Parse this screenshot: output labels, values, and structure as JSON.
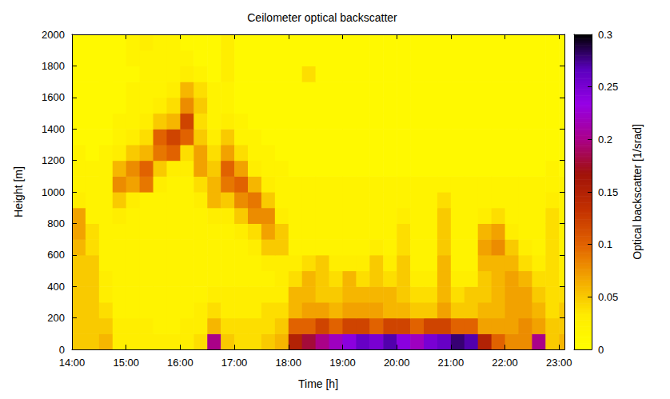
{
  "chart_data": {
    "type": "heatmap",
    "title": "Ceilometer optical backscatter",
    "x_label": "Time [h]",
    "y_label": "Height [m]",
    "xlim": [
      14,
      23.1
    ],
    "xticks": [
      {
        "value": 14,
        "label": "14:00"
      },
      {
        "value": 15,
        "label": "15:00"
      },
      {
        "value": 16,
        "label": "16:00"
      },
      {
        "value": 17,
        "label": "17:00"
      },
      {
        "value": 18,
        "label": "18:00"
      },
      {
        "value": 19,
        "label": "19:00"
      },
      {
        "value": 20,
        "label": "20:00"
      },
      {
        "value": 21,
        "label": "21:00"
      },
      {
        "value": 22,
        "label": "22:00"
      },
      {
        "value": 23,
        "label": "23:00"
      }
    ],
    "ylim": [
      0,
      2000
    ],
    "yticks": [
      0,
      200,
      400,
      600,
      800,
      1000,
      1200,
      1400,
      1600,
      1800,
      2000
    ],
    "grid": false,
    "x_bins": [
      14,
      14.25,
      14.5,
      14.75,
      15,
      15.25,
      15.5,
      15.75,
      16,
      16.25,
      16.5,
      16.75,
      17,
      17.25,
      17.5,
      17.75,
      18,
      18.25,
      18.5,
      18.75,
      19,
      19.25,
      19.5,
      19.75,
      20,
      20.25,
      20.5,
      20.75,
      21,
      21.25,
      21.5,
      21.75,
      22,
      22.25,
      22.5,
      22.75,
      23,
      23.1
    ],
    "y_bins": [
      0,
      100,
      200,
      300,
      400,
      500,
      600,
      700,
      800,
      900,
      1000,
      1100,
      1200,
      1300,
      1400,
      1500,
      1600,
      1700,
      1800,
      1900,
      2000
    ],
    "cells": [
      [
        0.05,
        0.05,
        0.06,
        0.03,
        0.03,
        0.03,
        0.03,
        0.03,
        0.03,
        0.04,
        0.2,
        0.05,
        0.04,
        0.04,
        0.05,
        0.06,
        0.15,
        0.18,
        0.2,
        0.22,
        0.24,
        0.26,
        0.25,
        0.27,
        0.24,
        0.22,
        0.25,
        0.26,
        0.28,
        0.27,
        0.15,
        0.1,
        0.08,
        0.08,
        0.2,
        0.05,
        0.06
      ],
      [
        0.05,
        0.05,
        0.05,
        0.03,
        0.03,
        0.03,
        0.02,
        0.02,
        0.03,
        0.03,
        0.06,
        0.04,
        0.04,
        0.04,
        0.04,
        0.05,
        0.1,
        0.1,
        0.12,
        0.1,
        0.12,
        0.12,
        0.1,
        0.12,
        0.12,
        0.1,
        0.12,
        0.12,
        0.1,
        0.1,
        0.07,
        0.07,
        0.07,
        0.08,
        0.07,
        0.05,
        0.05
      ],
      [
        0.05,
        0.05,
        0.04,
        0.02,
        0.02,
        0.02,
        0.02,
        0.02,
        0.02,
        0.03,
        0.04,
        0.03,
        0.03,
        0.03,
        0.04,
        0.04,
        0.06,
        0.07,
        0.07,
        0.06,
        0.07,
        0.07,
        0.07,
        0.06,
        0.06,
        0.05,
        0.05,
        0.07,
        0.05,
        0.05,
        0.06,
        0.06,
        0.07,
        0.07,
        0.06,
        0.04,
        0.05
      ],
      [
        0.05,
        0.05,
        0.03,
        0.02,
        0.02,
        0.02,
        0.02,
        0.02,
        0.02,
        0.02,
        0.03,
        0.03,
        0.03,
        0.03,
        0.03,
        0.03,
        0.06,
        0.06,
        0.05,
        0.05,
        0.06,
        0.06,
        0.06,
        0.06,
        0.05,
        0.04,
        0.04,
        0.06,
        0.04,
        0.05,
        0.05,
        0.06,
        0.07,
        0.07,
        0.05,
        0.04,
        0.04
      ],
      [
        0.05,
        0.05,
        0.03,
        0.02,
        0.02,
        0.02,
        0.02,
        0.02,
        0.02,
        0.02,
        0.02,
        0.02,
        0.02,
        0.02,
        0.02,
        0.03,
        0.04,
        0.06,
        0.05,
        0.04,
        0.06,
        0.04,
        0.05,
        0.04,
        0.05,
        0.03,
        0.03,
        0.06,
        0.03,
        0.03,
        0.05,
        0.06,
        0.07,
        0.06,
        0.04,
        0.04,
        0.03
      ],
      [
        0.05,
        0.05,
        0.02,
        0.02,
        0.02,
        0.02,
        0.02,
        0.02,
        0.02,
        0.02,
        0.02,
        0.02,
        0.02,
        0.02,
        0.03,
        0.03,
        0.03,
        0.04,
        0.05,
        0.03,
        0.03,
        0.03,
        0.05,
        0.03,
        0.05,
        0.02,
        0.02,
        0.06,
        0.02,
        0.02,
        0.06,
        0.06,
        0.06,
        0.04,
        0.03,
        0.04,
        0.03
      ],
      [
        0.06,
        0.04,
        0.02,
        0.02,
        0.02,
        0.02,
        0.02,
        0.02,
        0.02,
        0.02,
        0.02,
        0.02,
        0.02,
        0.03,
        0.05,
        0.05,
        0.02,
        0.02,
        0.02,
        0.02,
        0.02,
        0.02,
        0.03,
        0.02,
        0.04,
        0.02,
        0.02,
        0.05,
        0.02,
        0.02,
        0.07,
        0.08,
        0.05,
        0.03,
        0.02,
        0.04,
        0.02
      ],
      [
        0.07,
        0.04,
        0.02,
        0.02,
        0.02,
        0.02,
        0.02,
        0.02,
        0.02,
        0.02,
        0.02,
        0.02,
        0.03,
        0.04,
        0.07,
        0.05,
        0.02,
        0.02,
        0.02,
        0.02,
        0.02,
        0.02,
        0.02,
        0.02,
        0.04,
        0.02,
        0.02,
        0.05,
        0.02,
        0.02,
        0.06,
        0.07,
        0.03,
        0.02,
        0.02,
        0.04,
        0.02
      ],
      [
        0.07,
        0.02,
        0.02,
        0.03,
        0.02,
        0.02,
        0.02,
        0.02,
        0.02,
        0.02,
        0.03,
        0.03,
        0.05,
        0.08,
        0.08,
        0.03,
        0.02,
        0.02,
        0.02,
        0.02,
        0.02,
        0.02,
        0.02,
        0.02,
        0.03,
        0.02,
        0.02,
        0.05,
        0.02,
        0.02,
        0.03,
        0.04,
        0.02,
        0.02,
        0.02,
        0.04,
        0.02
      ],
      [
        0.03,
        0.02,
        0.02,
        0.05,
        0.03,
        0.02,
        0.02,
        0.02,
        0.02,
        0.03,
        0.06,
        0.05,
        0.08,
        0.09,
        0.05,
        0.02,
        0.02,
        0.02,
        0.02,
        0.02,
        0.02,
        0.02,
        0.02,
        0.02,
        0.02,
        0.02,
        0.02,
        0.04,
        0.02,
        0.02,
        0.02,
        0.02,
        0.02,
        0.02,
        0.02,
        0.03,
        0.02
      ],
      [
        0.02,
        0.02,
        0.02,
        0.08,
        0.07,
        0.09,
        0.03,
        0.02,
        0.02,
        0.04,
        0.06,
        0.09,
        0.1,
        0.06,
        0.03,
        0.02,
        0.02,
        0.02,
        0.02,
        0.02,
        0.02,
        0.02,
        0.02,
        0.02,
        0.02,
        0.02,
        0.02,
        0.02,
        0.02,
        0.02,
        0.02,
        0.02,
        0.02,
        0.02,
        0.02,
        0.02,
        0.02
      ],
      [
        0.02,
        0.02,
        0.02,
        0.06,
        0.08,
        0.1,
        0.05,
        0.03,
        0.03,
        0.07,
        0.05,
        0.1,
        0.07,
        0.03,
        0.02,
        0.02,
        0.01,
        0.01,
        0.01,
        0.01,
        0.01,
        0.01,
        0.01,
        0.01,
        0.01,
        0.01,
        0.01,
        0.01,
        0.01,
        0.01,
        0.01,
        0.01,
        0.01,
        0.01,
        0.01,
        0.02,
        0.01
      ],
      [
        0.02,
        0.01,
        0.02,
        0.03,
        0.05,
        0.06,
        0.09,
        0.1,
        0.04,
        0.07,
        0.04,
        0.07,
        0.04,
        0.02,
        0.02,
        0.01,
        0.01,
        0.01,
        0.01,
        0.01,
        0.01,
        0.01,
        0.01,
        0.01,
        0.01,
        0.01,
        0.01,
        0.01,
        0.01,
        0.01,
        0.01,
        0.01,
        0.01,
        0.01,
        0.01,
        0.01,
        0.01
      ],
      [
        0.01,
        0.01,
        0.01,
        0.02,
        0.03,
        0.04,
        0.1,
        0.12,
        0.1,
        0.05,
        0.03,
        0.05,
        0.02,
        0.02,
        0.01,
        0.01,
        0.01,
        0.01,
        0.01,
        0.01,
        0.01,
        0.01,
        0.01,
        0.01,
        0.01,
        0.01,
        0.01,
        0.01,
        0.01,
        0.01,
        0.01,
        0.01,
        0.01,
        0.01,
        0.01,
        0.01,
        0.01
      ],
      [
        0.01,
        0.01,
        0.01,
        0.02,
        0.02,
        0.03,
        0.05,
        0.06,
        0.12,
        0.04,
        0.02,
        0.03,
        0.02,
        0.01,
        0.01,
        0.01,
        0.01,
        0.01,
        0.01,
        0.01,
        0.01,
        0.01,
        0.01,
        0.01,
        0.01,
        0.01,
        0.01,
        0.01,
        0.01,
        0.01,
        0.01,
        0.01,
        0.01,
        0.01,
        0.01,
        0.01,
        0.01
      ],
      [
        0.01,
        0.01,
        0.01,
        0.01,
        0.02,
        0.02,
        0.03,
        0.04,
        0.08,
        0.05,
        0.02,
        0.02,
        0.01,
        0.01,
        0.01,
        0.01,
        0.01,
        0.01,
        0.01,
        0.01,
        0.01,
        0.01,
        0.01,
        0.01,
        0.01,
        0.01,
        0.01,
        0.01,
        0.01,
        0.01,
        0.01,
        0.01,
        0.01,
        0.01,
        0.01,
        0.01,
        0.01
      ],
      [
        0.01,
        0.01,
        0.01,
        0.01,
        0.02,
        0.02,
        0.02,
        0.03,
        0.06,
        0.04,
        0.02,
        0.02,
        0.01,
        0.01,
        0.01,
        0.01,
        0.01,
        0.01,
        0.01,
        0.01,
        0.01,
        0.01,
        0.01,
        0.01,
        0.01,
        0.01,
        0.01,
        0.01,
        0.01,
        0.01,
        0.01,
        0.01,
        0.01,
        0.01,
        0.01,
        0.01,
        0.01
      ],
      [
        0.01,
        0.01,
        0.01,
        0.01,
        0.01,
        0.02,
        0.02,
        0.02,
        0.03,
        0.02,
        0.01,
        0.03,
        0.01,
        0.01,
        0.01,
        0.01,
        0.01,
        0.04,
        0.01,
        0.01,
        0.01,
        0.01,
        0.01,
        0.01,
        0.01,
        0.01,
        0.01,
        0.01,
        0.01,
        0.01,
        0.01,
        0.01,
        0.01,
        0.01,
        0.01,
        0.01,
        0.01
      ],
      [
        0.01,
        0.01,
        0.01,
        0.01,
        0.02,
        0.02,
        0.02,
        0.02,
        0.02,
        0.01,
        0.01,
        0.03,
        0.01,
        0.01,
        0.01,
        0.01,
        0.01,
        0.01,
        0.01,
        0.01,
        0.01,
        0.01,
        0.01,
        0.01,
        0.01,
        0.01,
        0.01,
        0.01,
        0.01,
        0.01,
        0.01,
        0.01,
        0.01,
        0.01,
        0.01,
        0.01,
        0.01
      ],
      [
        0.01,
        0.01,
        0.01,
        0.01,
        0.02,
        0.03,
        0.02,
        0.02,
        0.01,
        0.01,
        0.01,
        0.03,
        0.01,
        0.01,
        0.01,
        0.01,
        0.01,
        0.01,
        0.01,
        0.01,
        0.01,
        0.01,
        0.01,
        0.01,
        0.01,
        0.01,
        0.01,
        0.01,
        0.01,
        0.01,
        0.01,
        0.01,
        0.01,
        0.01,
        0.01,
        0.01,
        0.01
      ]
    ],
    "colorbar_label": "Optical backscatter [1/srad]",
    "colorbar_lim": [
      0,
      0.3
    ],
    "colorbar_ticks": [
      0,
      0.05,
      0.1,
      0.15,
      0.2,
      0.25,
      0.3
    ]
  }
}
